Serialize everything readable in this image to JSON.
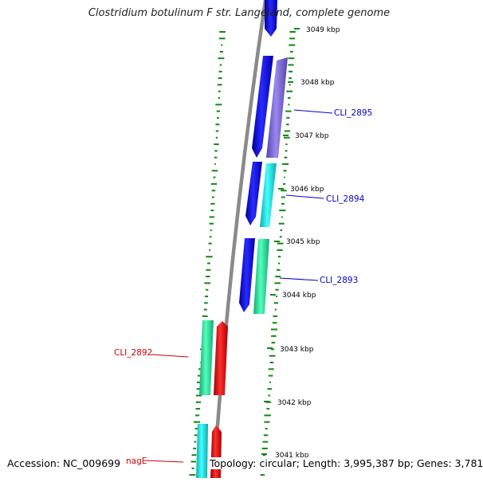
{
  "title": "Clostridium botulinum F str. Langeland, complete genome",
  "footer": {
    "accession": "Accession: NC_009699",
    "summary": "Topology: circular; Length: 3,995,387 bp; Genes: 3,781"
  },
  "kbp_ticks": [
    {
      "label": "3049 kbp"
    },
    {
      "label": "3048 kbp"
    },
    {
      "label": "3047 kbp"
    },
    {
      "label": "3046 kbp"
    },
    {
      "label": "3045 kbp"
    },
    {
      "label": "3044 kbp"
    },
    {
      "label": "3043 kbp"
    },
    {
      "label": "3042 kbp"
    },
    {
      "label": "3041 kbp"
    }
  ],
  "gene_labels": [
    {
      "text": "CLI_2895",
      "color": "#0000cc"
    },
    {
      "text": "CLI_2894",
      "color": "#0000cc"
    },
    {
      "text": "CLI_2893",
      "color": "#0000cc"
    },
    {
      "text": "CLI_2892",
      "color": "#cc0000"
    },
    {
      "text": "nagE",
      "color": "#cc0000"
    }
  ],
  "colors": {
    "forward_strand": "#1a1aee",
    "reverse_strand": "#ee1a1a",
    "cog_purple": "#7766cc",
    "cog_cyan": "#22dddd",
    "cog_green": "#22dd99",
    "backbone": "#888888",
    "gc_marks": "#118811"
  }
}
